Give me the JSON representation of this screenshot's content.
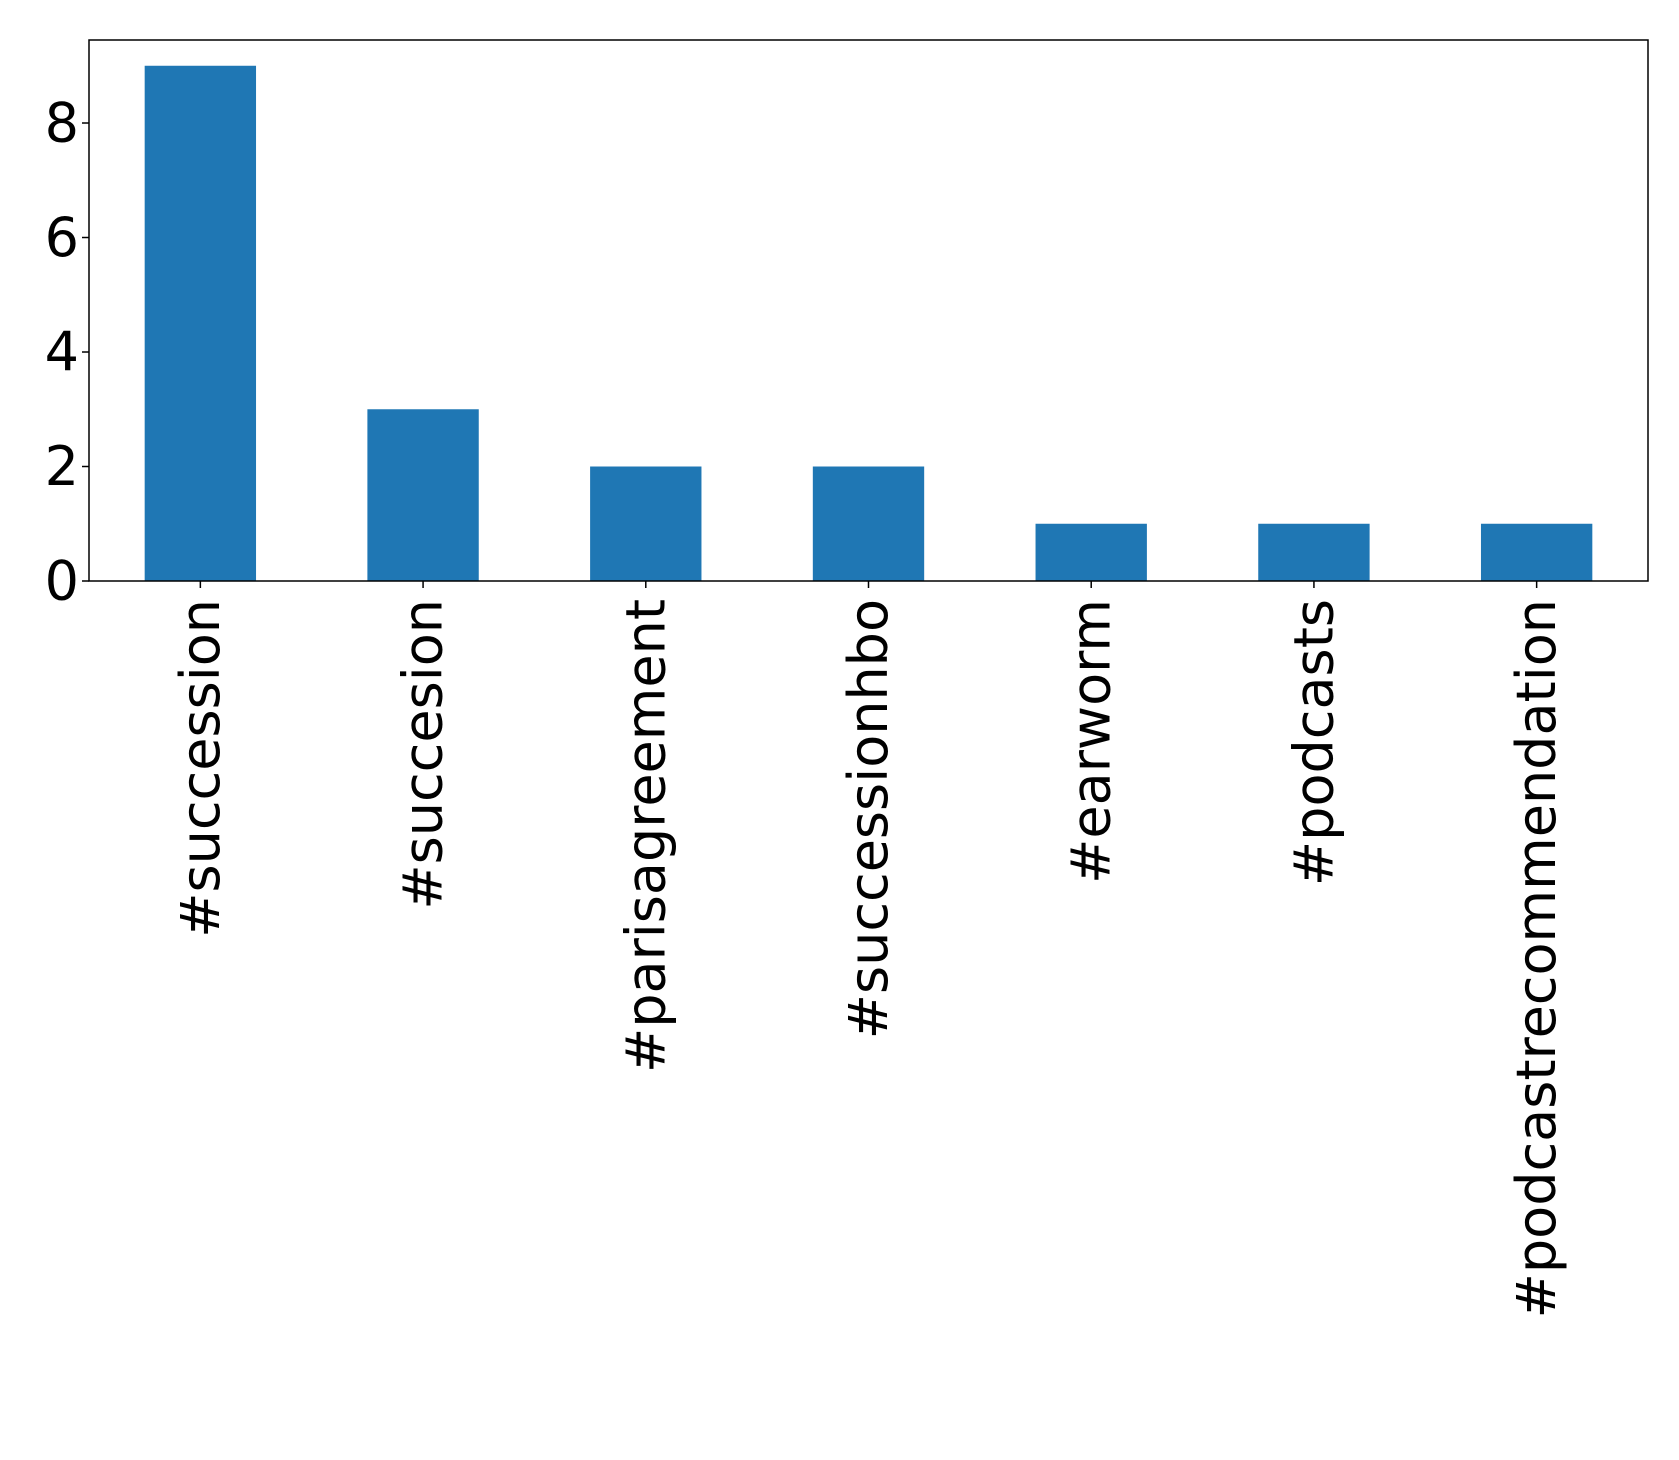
{
  "chart_data": {
    "type": "bar",
    "categories": [
      "#succession",
      "#succesion",
      "#parisagreement",
      "#successionhbo",
      "#earworm",
      "#podcasts",
      "#podcastrecommendation"
    ],
    "values": [
      9,
      3,
      2,
      2,
      1,
      1,
      1
    ],
    "title": "",
    "xlabel": "",
    "ylabel": "",
    "ylim": [
      0,
      9.45
    ],
    "yticks": [
      "0",
      "2",
      "4",
      "6",
      "8"
    ],
    "grid": false,
    "bar_color": "#1f77b4"
  }
}
